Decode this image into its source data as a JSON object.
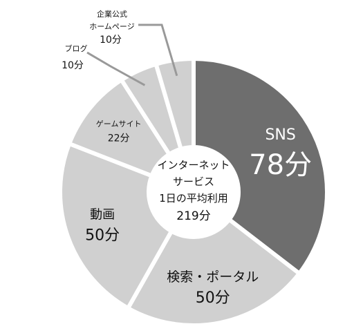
{
  "chart_data": {
    "type": "pie",
    "variant": "donut",
    "center_label": {
      "line1": "インターネット",
      "line2": "サービス",
      "line3": "1日の平均利用",
      "line4": "219分"
    },
    "slices": [
      {
        "name": "SNS",
        "value": 78,
        "value_label": "78分",
        "color": "#6e6e6e",
        "text_color": "#ffffff"
      },
      {
        "name": "検索・ポータル",
        "value": 50,
        "value_label": "50分",
        "color": "#d0d0d0",
        "text_color": "#111111"
      },
      {
        "name": "動画",
        "value": 50,
        "value_label": "50分",
        "color": "#d0d0d0",
        "text_color": "#111111"
      },
      {
        "name": "ゲームサイト",
        "value": 22,
        "value_label": "22分",
        "color": "#d0d0d0",
        "text_color": "#111111"
      },
      {
        "name": "ブログ",
        "value": 10,
        "value_label": "10分",
        "color": "#d0d0d0",
        "text_color": "#111111"
      },
      {
        "name": "企業公式\nホームページ",
        "value": 10,
        "value_label": "10分",
        "color": "#d0d0d0",
        "text_color": "#111111"
      }
    ]
  }
}
